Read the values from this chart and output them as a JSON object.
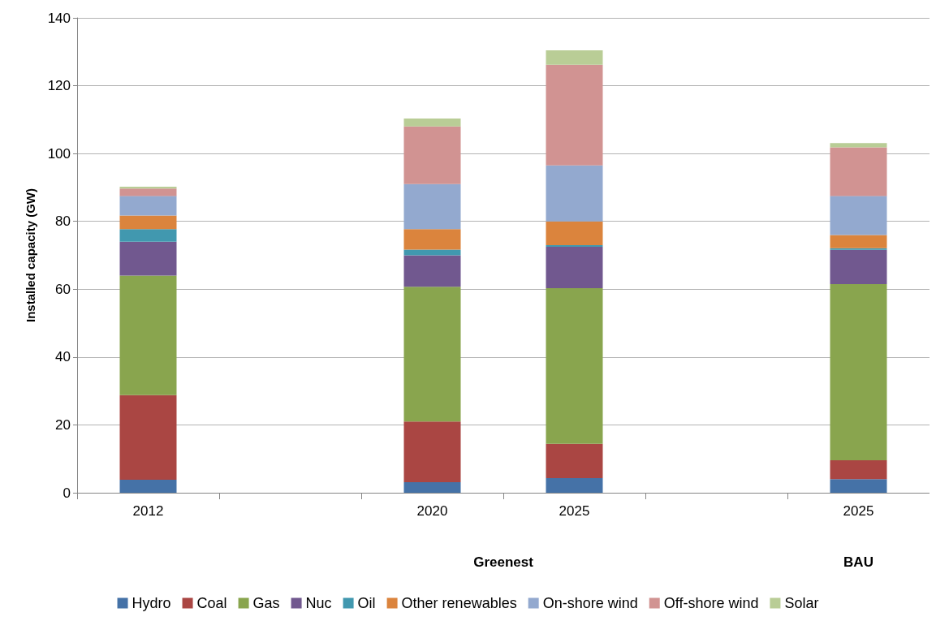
{
  "chart_data": {
    "type": "bar",
    "stacked": true,
    "ylabel": "Installed capacity (GW)",
    "categories": [
      "2012",
      null,
      "2020",
      "2025",
      null,
      "2025"
    ],
    "series": [
      {
        "name": "Hydro",
        "color": "#4572a7",
        "values": [
          3.8,
          null,
          3.1,
          4.3,
          null,
          4
        ]
      },
      {
        "name": "Coal",
        "color": "#aa4643",
        "values": [
          25,
          null,
          17.9,
          10.1,
          null,
          5.6
        ]
      },
      {
        "name": "Gas",
        "color": "#89a54e",
        "values": [
          35.2,
          null,
          39.7,
          45.9,
          null,
          51.9
        ]
      },
      {
        "name": "Nuc",
        "color": "#71588f",
        "values": [
          10,
          null,
          9.3,
          12.2,
          null,
          10.1
        ]
      },
      {
        "name": "Oil",
        "color": "#4198af",
        "values": [
          3.7,
          null,
          1.7,
          0.5,
          null,
          0.5
        ]
      },
      {
        "name": "Other renewables",
        "color": "#db843d",
        "values": [
          4,
          null,
          6,
          7,
          null,
          3.9
        ]
      },
      {
        "name": "On-shore wind",
        "color": "#93a9cf",
        "values": [
          5.8,
          null,
          13.3,
          16.5,
          null,
          11.5
        ]
      },
      {
        "name": "Off-shore wind",
        "color": "#d19392",
        "values": [
          2.2,
          null,
          17,
          29.7,
          null,
          14.3
        ]
      },
      {
        "name": "Solar",
        "color": "#b9cd96",
        "values": [
          0.5,
          null,
          2.3,
          4.2,
          null,
          1.3
        ]
      }
    ],
    "annotations": [
      "Greenest",
      "BAU"
    ],
    "ylim": [
      0,
      140
    ],
    "yticks": [
      0,
      20,
      40,
      60,
      80,
      100,
      120,
      140
    ],
    "grid": "y",
    "legend": "bottom"
  }
}
